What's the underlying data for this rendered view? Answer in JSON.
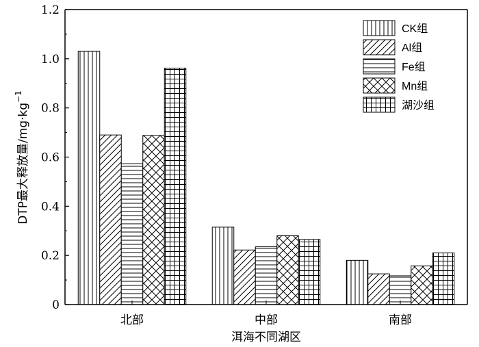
{
  "chart_data": {
    "type": "bar",
    "categories": [
      "北部",
      "中部",
      "南部"
    ],
    "series": [
      {
        "name": "CK组",
        "values": [
          1.03,
          0.315,
          0.18
        ]
      },
      {
        "name": "Al组",
        "values": [
          0.69,
          0.222,
          0.125
        ]
      },
      {
        "name": "Fe组",
        "values": [
          0.573,
          0.235,
          0.117
        ]
      },
      {
        "name": "Mn组",
        "values": [
          0.688,
          0.28,
          0.157
        ]
      },
      {
        "name": "湖沙组",
        "values": [
          0.962,
          0.265,
          0.21
        ]
      }
    ],
    "patterns": [
      "vertical-lines",
      "diagonal-lines",
      "horizontal-lines",
      "crosshatch-diagonal",
      "grid"
    ],
    "xlabel": "洱海不同湖区",
    "ylabel": "DTP最大释放量/mg·kg",
    "ylabel_superscript": "−1",
    "ylim": [
      0,
      1.2
    ],
    "yticks": [
      "0",
      "0.2",
      "0.4",
      "0.6",
      "0.8",
      "1.0",
      "1.2"
    ],
    "grid": false,
    "legend_position": "top-right"
  }
}
